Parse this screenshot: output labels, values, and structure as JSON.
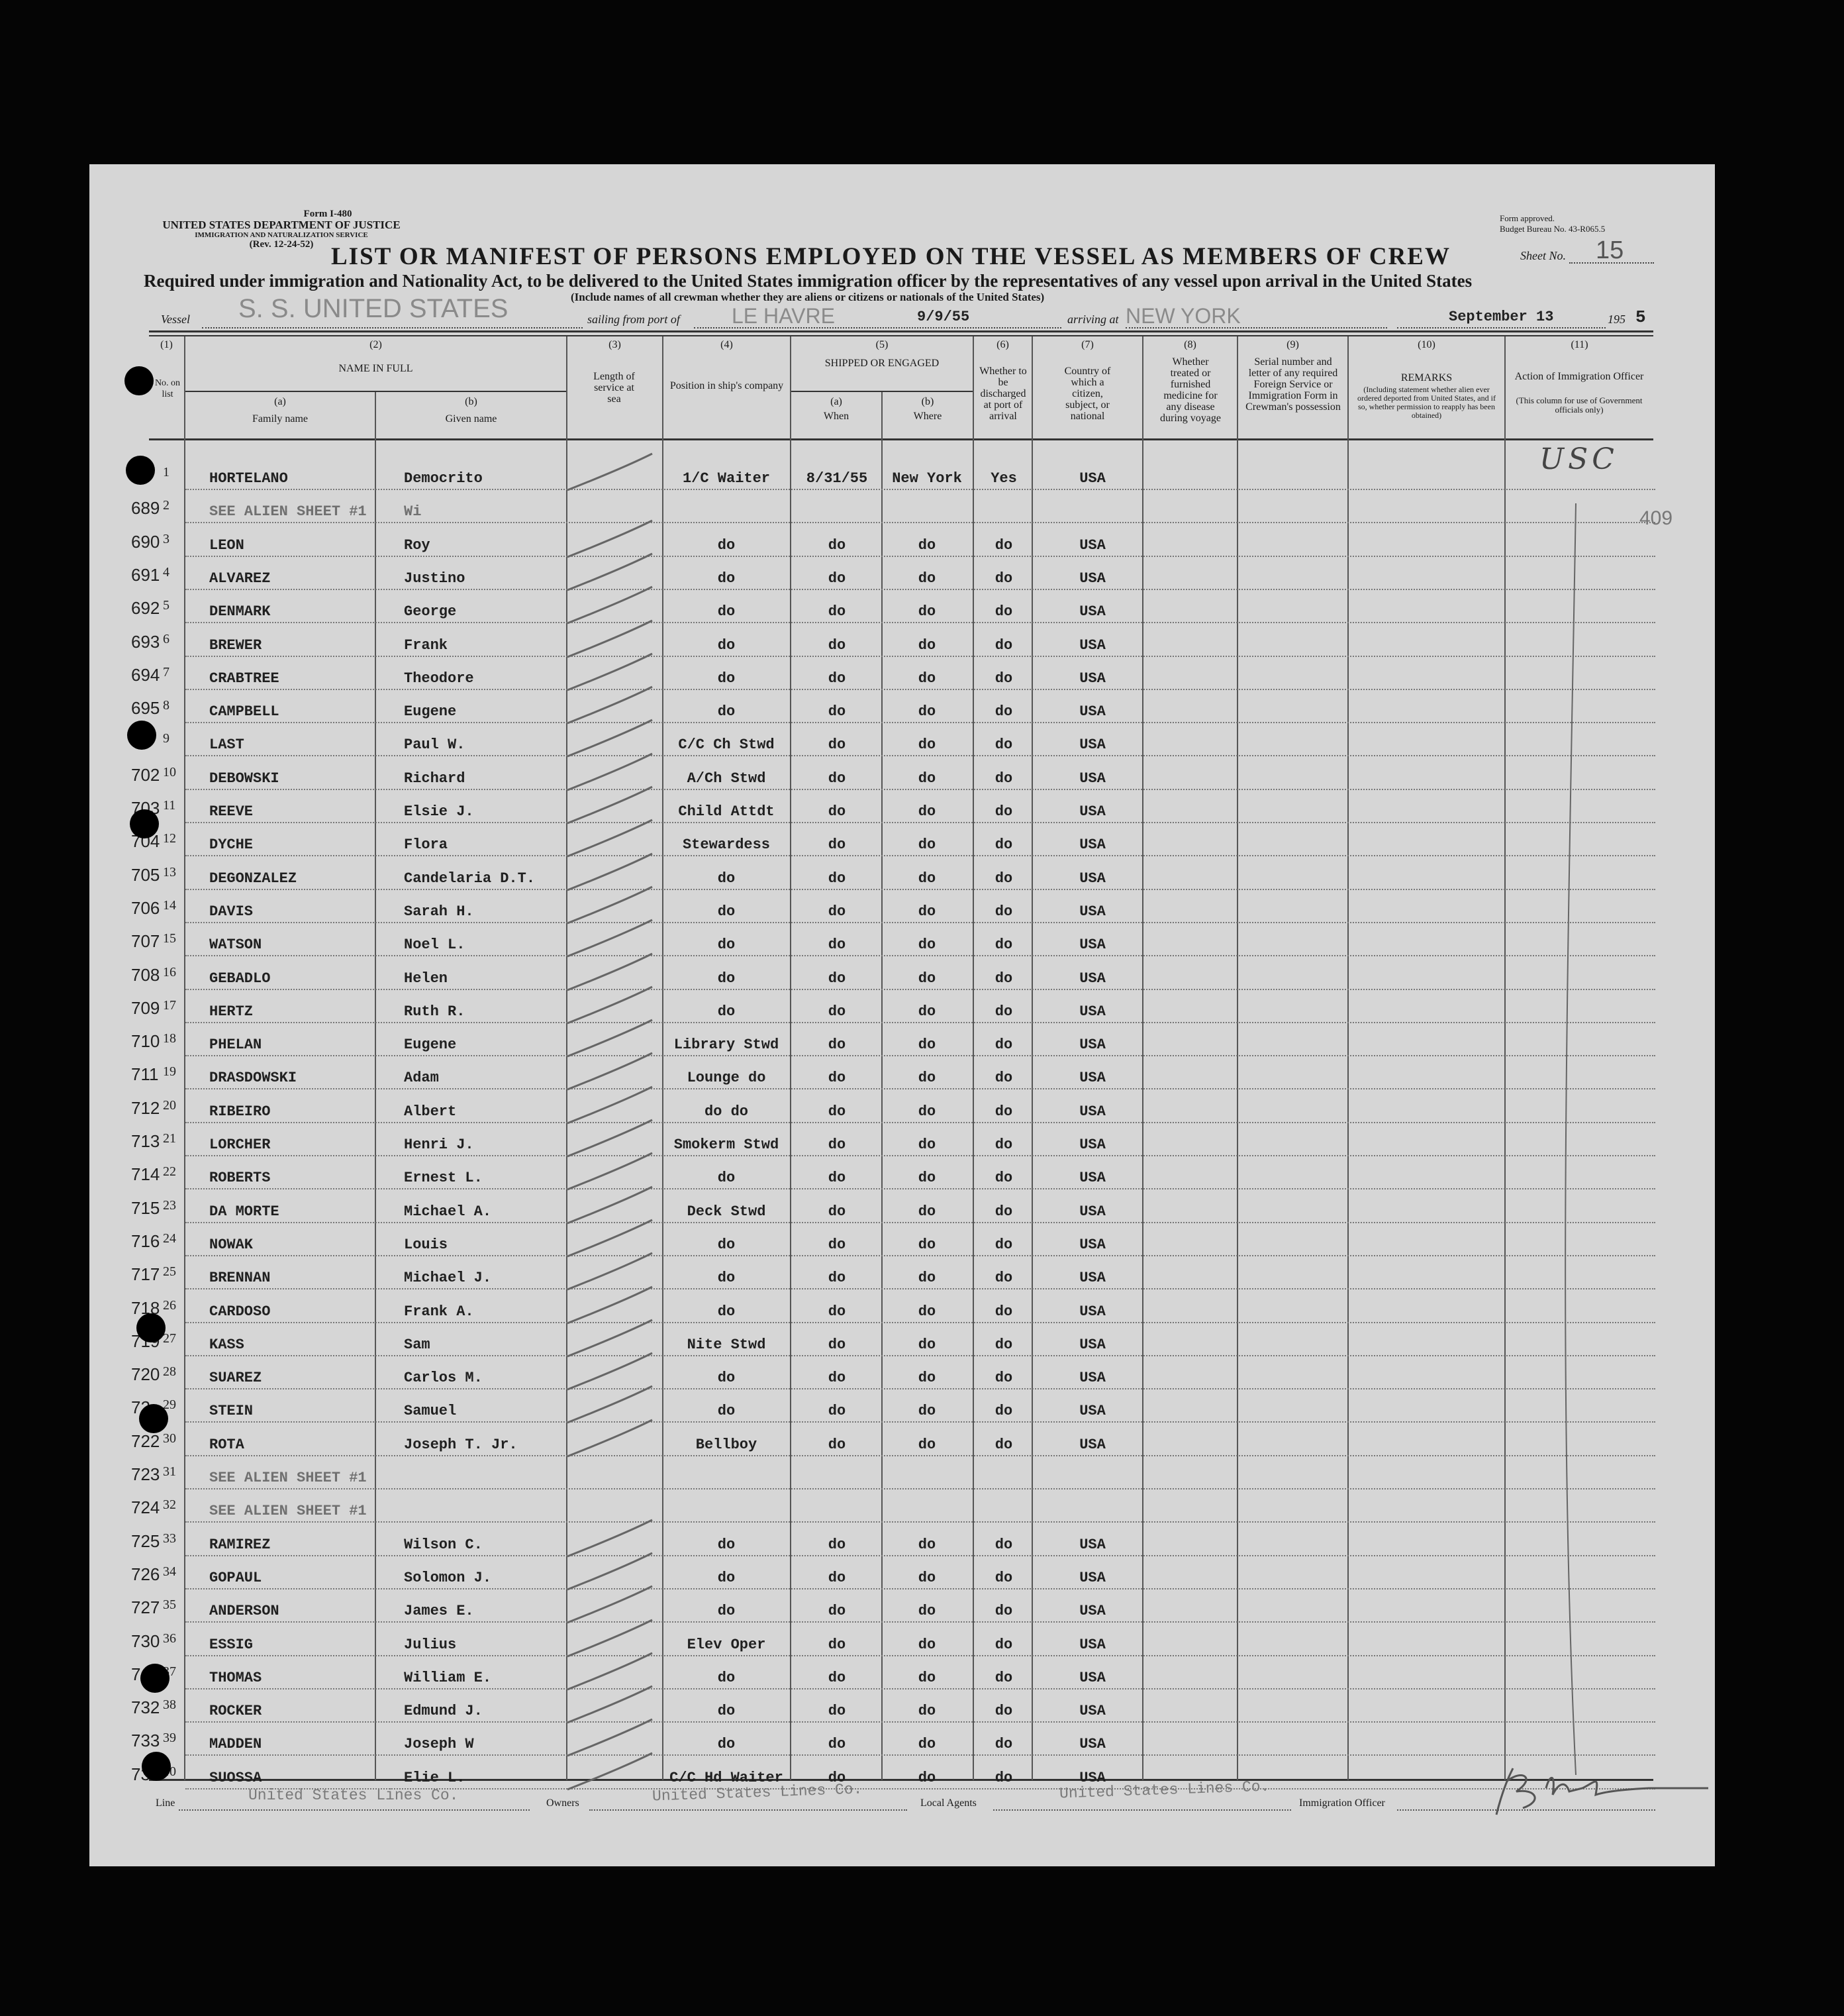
{
  "form": {
    "form_number": "Form I-480",
    "department": "UNITED STATES DEPARTMENT OF JUSTICE",
    "service": "IMMIGRATION AND NATURALIZATION SERVICE",
    "revision": "(Rev. 12-24-52)",
    "approval_line1": "Form approved.",
    "approval_line2": "Budget Bureau No. 43-R065.5",
    "title": "LIST OR MANIFEST OF PERSONS EMPLOYED ON THE VESSEL AS MEMBERS OF CREW",
    "sheet_label": "Sheet No.",
    "sheet_no": "15",
    "subtitle": "Required under immigration and Nationality Act, to be delivered to the United States immigration officer by the representatives of any vessel upon arrival in the United States",
    "note": "(Include names of all crewman whether they are aliens or citizens or nationals of the United States)",
    "vessel_label": "Vessel",
    "vessel": "S. S. UNITED STATES",
    "sailing_label": "sailing from port of",
    "sailing_port": "LE HAVRE",
    "sailing_date": "9/9/55",
    "arriving_label": "arriving at",
    "arriving_port": "NEW YORK",
    "arrival_date": "September 13",
    "year_prefix": "195",
    "year_suffix": "5"
  },
  "columns": {
    "c1_num": "(1)",
    "c1_label": "No. on list",
    "c2_num": "(2)",
    "c2_label": "NAME IN FULL",
    "c2a_sub": "(a)",
    "c2a_label": "Family name",
    "c2b_sub": "(b)",
    "c2b_label": "Given name",
    "c3_num": "(3)",
    "c3_label": "Length of service at sea",
    "c4_num": "(4)",
    "c4_label": "Position in ship's company",
    "c5_num": "(5)",
    "c5_label": "SHIPPED OR ENGAGED",
    "c5a_sub": "(a)",
    "c5a_label": "When",
    "c5b_sub": "(b)",
    "c5b_label": "Where",
    "c6_num": "(6)",
    "c6_label": "Whether to be discharged at port of arrival",
    "c7_num": "(7)",
    "c7_label": "Country of which a citizen, subject, or national",
    "c8_num": "(8)",
    "c8_label": "Whether treated or furnished medicine for any disease during voyage",
    "c9_num": "(9)",
    "c9_label": "Serial number and letter of any required Foreign Service or Immigration Form in Crewman's possession",
    "c10_num": "(10)",
    "c10_label": "REMARKS",
    "c10_note": "(Including statement whether alien ever ordered deported from United States, and if so, whether permission to reapply has been obtained)",
    "c11_num": "(11)",
    "c11_label": "Action of Immigration Officer",
    "c11_note": "(This column for use of Government officials only)"
  },
  "annotations": {
    "officer_mark": "USC",
    "side_number": "409"
  },
  "rows": [
    {
      "margin": "6",
      "no": "1",
      "family": "HORTELANO",
      "given": "Democrito",
      "position": "1/C Waiter",
      "when": "8/31/55",
      "where": "New York",
      "discharged": "Yes",
      "country": "USA"
    },
    {
      "margin": "689",
      "no": "2",
      "family": "SEE ALIEN SHEET #1",
      "given": "Wi",
      "position": "",
      "when": "",
      "where": "",
      "discharged": "",
      "country": "",
      "faded": true
    },
    {
      "margin": "690",
      "no": "3",
      "family": "LEON",
      "given": "Roy",
      "position": "do",
      "when": "do",
      "where": "do",
      "discharged": "do",
      "country": "USA"
    },
    {
      "margin": "691",
      "no": "4",
      "family": "ALVAREZ",
      "given": "Justino",
      "position": "do",
      "when": "do",
      "where": "do",
      "discharged": "do",
      "country": "USA"
    },
    {
      "margin": "692",
      "no": "5",
      "family": "DENMARK",
      "given": "George",
      "position": "do",
      "when": "do",
      "where": "do",
      "discharged": "do",
      "country": "USA"
    },
    {
      "margin": "693",
      "no": "6",
      "family": "BREWER",
      "given": "Frank",
      "position": "do",
      "when": "do",
      "where": "do",
      "discharged": "do",
      "country": "USA"
    },
    {
      "margin": "694",
      "no": "7",
      "family": "CRABTREE",
      "given": "Theodore",
      "position": "do",
      "when": "do",
      "where": "do",
      "discharged": "do",
      "country": "USA"
    },
    {
      "margin": "695",
      "no": "8",
      "family": "CAMPBELL",
      "given": "Eugene",
      "position": "do",
      "when": "do",
      "where": "do",
      "discharged": "do",
      "country": "USA"
    },
    {
      "margin": "7",
      "no": "9",
      "family": "LAST",
      "given": "Paul W.",
      "position": "C/C Ch Stwd",
      "when": "do",
      "where": "do",
      "discharged": "do",
      "country": "USA"
    },
    {
      "margin": "702",
      "no": "10",
      "family": "DEBOWSKI",
      "given": "Richard",
      "position": "A/Ch Stwd",
      "when": "do",
      "where": "do",
      "discharged": "do",
      "country": "USA"
    },
    {
      "margin": "703",
      "no": "11",
      "family": "REEVE",
      "given": "Elsie J.",
      "position": "Child Attdt",
      "when": "do",
      "where": "do",
      "discharged": "do",
      "country": "USA"
    },
    {
      "margin": "704",
      "no": "12",
      "family": "DYCHE",
      "given": "Flora",
      "position": "Stewardess",
      "when": "do",
      "where": "do",
      "discharged": "do",
      "country": "USA"
    },
    {
      "margin": "705",
      "no": "13",
      "family": "DEGONZALEZ",
      "given": "Candelaria D.T.",
      "position": "do",
      "when": "do",
      "where": "do",
      "discharged": "do",
      "country": "USA"
    },
    {
      "margin": "706",
      "no": "14",
      "family": "DAVIS",
      "given": "Sarah H.",
      "position": "do",
      "when": "do",
      "where": "do",
      "discharged": "do",
      "country": "USA"
    },
    {
      "margin": "707",
      "no": "15",
      "family": "WATSON",
      "given": "Noel L.",
      "position": "do",
      "when": "do",
      "where": "do",
      "discharged": "do",
      "country": "USA"
    },
    {
      "margin": "708",
      "no": "16",
      "family": "GEBADLO",
      "given": "Helen",
      "position": "do",
      "when": "do",
      "where": "do",
      "discharged": "do",
      "country": "USA"
    },
    {
      "margin": "709",
      "no": "17",
      "family": "HERTZ",
      "given": "Ruth R.",
      "position": "do",
      "when": "do",
      "where": "do",
      "discharged": "do",
      "country": "USA"
    },
    {
      "margin": "710",
      "no": "18",
      "family": "PHELAN",
      "given": "Eugene",
      "position": "Library Stwd",
      "when": "do",
      "where": "do",
      "discharged": "do",
      "country": "USA"
    },
    {
      "margin": "711",
      "no": "19",
      "family": "DRASDOWSKI",
      "given": "Adam",
      "position": "Lounge do",
      "when": "do",
      "where": "do",
      "discharged": "do",
      "country": "USA"
    },
    {
      "margin": "712",
      "no": "20",
      "family": "RIBEIRO",
      "given": "Albert",
      "position": "do   do",
      "when": "do",
      "where": "do",
      "discharged": "do",
      "country": "USA"
    },
    {
      "margin": "713",
      "no": "21",
      "family": "LORCHER",
      "given": "Henri J.",
      "position": "Smokerm Stwd",
      "when": "do",
      "where": "do",
      "discharged": "do",
      "country": "USA"
    },
    {
      "margin": "714",
      "no": "22",
      "family": "ROBERTS",
      "given": "Ernest L.",
      "position": "do",
      "when": "do",
      "where": "do",
      "discharged": "do",
      "country": "USA"
    },
    {
      "margin": "715",
      "no": "23",
      "family": "DA MORTE",
      "given": "Michael A.",
      "position": "Deck Stwd",
      "when": "do",
      "where": "do",
      "discharged": "do",
      "country": "USA"
    },
    {
      "margin": "716",
      "no": "24",
      "family": "NOWAK",
      "given": "Louis",
      "position": "do",
      "when": "do",
      "where": "do",
      "discharged": "do",
      "country": "USA"
    },
    {
      "margin": "717",
      "no": "25",
      "family": "BRENNAN",
      "given": "Michael J.",
      "position": "do",
      "when": "do",
      "where": "do",
      "discharged": "do",
      "country": "USA"
    },
    {
      "margin": "718",
      "no": "26",
      "family": "CARDOSO",
      "given": "Frank A.",
      "position": "do",
      "when": "do",
      "where": "do",
      "discharged": "do",
      "country": "USA"
    },
    {
      "margin": "719",
      "no": "27",
      "family": "KASS",
      "given": "Sam",
      "position": "Nite Stwd",
      "when": "do",
      "where": "do",
      "discharged": "do",
      "country": "USA"
    },
    {
      "margin": "720",
      "no": "28",
      "family": "SUAREZ",
      "given": "Carlos M.",
      "position": "do",
      "when": "do",
      "where": "do",
      "discharged": "do",
      "country": "USA"
    },
    {
      "margin": "72",
      "no": "29",
      "family": "STEIN",
      "given": "Samuel",
      "position": "do",
      "when": "do",
      "where": "do",
      "discharged": "do",
      "country": "USA"
    },
    {
      "margin": "722",
      "no": "30",
      "family": "ROTA",
      "given": "Joseph T. Jr.",
      "position": "Bellboy",
      "when": "do",
      "where": "do",
      "discharged": "do",
      "country": "USA"
    },
    {
      "margin": "723",
      "no": "31",
      "family": "SEE ALIEN SHEET #1",
      "given": "",
      "position": "",
      "when": "",
      "where": "",
      "discharged": "",
      "country": "",
      "faded": true
    },
    {
      "margin": "724",
      "no": "32",
      "family": "SEE ALIEN SHEET #1",
      "given": "",
      "position": "",
      "when": "",
      "where": "",
      "discharged": "",
      "country": "",
      "faded": true
    },
    {
      "margin": "725",
      "no": "33",
      "family": "RAMIREZ",
      "given": "Wilson C.",
      "position": "do",
      "when": "do",
      "where": "do",
      "discharged": "do",
      "country": "USA"
    },
    {
      "margin": "726",
      "no": "34",
      "family": "GOPAUL",
      "given": "Solomon J.",
      "position": "do",
      "when": "do",
      "where": "do",
      "discharged": "do",
      "country": "USA"
    },
    {
      "margin": "727",
      "no": "35",
      "family": "ANDERSON",
      "given": "James E.",
      "position": "do",
      "when": "do",
      "where": "do",
      "discharged": "do",
      "country": "USA"
    },
    {
      "margin": "730",
      "no": "36",
      "family": "ESSIG",
      "given": "Julius",
      "position": "Elev Oper",
      "when": "do",
      "where": "do",
      "discharged": "do",
      "country": "USA"
    },
    {
      "margin": "7",
      "no": "37",
      "family": "THOMAS",
      "given": "William E.",
      "position": "do",
      "when": "do",
      "where": "do",
      "discharged": "do",
      "country": "USA"
    },
    {
      "margin": "732",
      "no": "38",
      "family": "ROCKER",
      "given": "Edmund J.",
      "position": "do",
      "when": "do",
      "where": "do",
      "discharged": "do",
      "country": "USA"
    },
    {
      "margin": "733",
      "no": "39",
      "family": "MADDEN",
      "given": "Joseph W",
      "position": "do",
      "when": "do",
      "where": "do",
      "discharged": "do",
      "country": "USA"
    },
    {
      "margin": "73",
      "no": "40",
      "family": "SUOSSA",
      "given": "Elie L.",
      "position": "C/C Hd Waiter",
      "when": "do",
      "where": "do",
      "discharged": "do",
      "country": "USA"
    }
  ],
  "footer": {
    "line_label": "Line",
    "line_value": "United States Lines Co.",
    "owners_label": "Owners",
    "owners_value": "United States Lines Co.",
    "agents_label": "Local Agents",
    "agents_value": "United States Lines Co.",
    "officer_label": "Immigration Officer"
  }
}
